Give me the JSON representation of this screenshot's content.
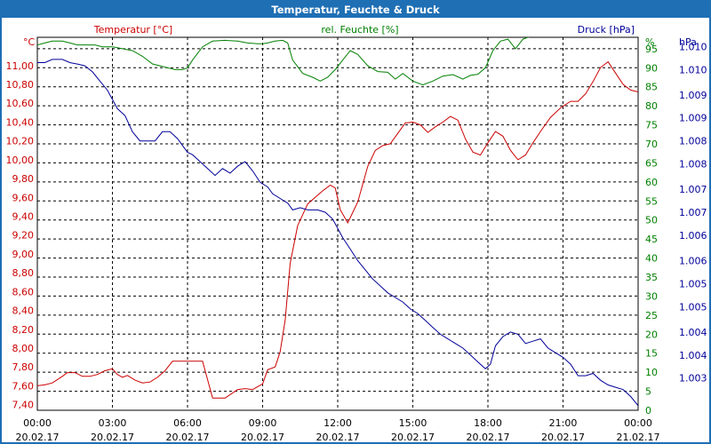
{
  "window": {
    "title": "Temperatur, Feuchte & Druck"
  },
  "colors": {
    "temperature": "#cc0000",
    "humidity": "#008000",
    "pressure": "#000099",
    "title_bar": "#1f6fb4",
    "grid": "#000000"
  },
  "chart_data": {
    "type": "line",
    "title": "Temperatur, Feuchte & Druck",
    "grid": true,
    "x_range": [
      "20.02.17 00:00",
      "21.02.17 00:00"
    ],
    "x_ticks": [
      {
        "time": "00:00",
        "date": "20.02.17",
        "h": 0
      },
      {
        "time": "03:00",
        "date": "20.02.17",
        "h": 3
      },
      {
        "time": "06:00",
        "date": "20.02.17",
        "h": 6
      },
      {
        "time": "09:00",
        "date": "20.02.17",
        "h": 9
      },
      {
        "time": "12:00",
        "date": "20.02.17",
        "h": 12
      },
      {
        "time": "15:00",
        "date": "20.02.17",
        "h": 15
      },
      {
        "time": "18:00",
        "date": "20.02.17",
        "h": 18
      },
      {
        "time": "21:00",
        "date": "20.02.17",
        "h": 21
      },
      {
        "time": "00:00",
        "date": "21.02.17",
        "h": 24
      }
    ],
    "axes": {
      "temperature": {
        "label": "Temperatur [°C]",
        "unit": "°C",
        "ylim": [
          7.34,
          11.3
        ],
        "ticks": [
          "11,00",
          "10,80",
          "10,60",
          "10,40",
          "10,20",
          "10,00",
          "9,80",
          "9,60",
          "9,40",
          "9,20",
          "9,00",
          "8,80",
          "8,60",
          "8,40",
          "8,20",
          "8,00",
          "7,80",
          "7,60",
          "7,40"
        ],
        "tick_values": [
          11.0,
          10.8,
          10.6,
          10.4,
          10.2,
          10.0,
          9.8,
          9.6,
          9.4,
          9.2,
          9.0,
          8.8,
          8.6,
          8.4,
          8.2,
          8.0,
          7.8,
          7.6,
          7.4
        ]
      },
      "humidity": {
        "label": "rel. Feuchte [%]",
        "unit": "%",
        "ylim": [
          0,
          98
        ],
        "ticks": [
          "95",
          "90",
          "85",
          "80",
          "75",
          "70",
          "65",
          "60",
          "55",
          "50",
          "45",
          "40",
          "35",
          "30",
          "25",
          "20",
          "15",
          "10",
          "5",
          "0"
        ],
        "tick_values": [
          95,
          90,
          85,
          80,
          75,
          70,
          65,
          60,
          55,
          50,
          45,
          40,
          35,
          30,
          25,
          20,
          15,
          10,
          5,
          0
        ]
      },
      "pressure": {
        "label": "Druck [hPa]",
        "unit": "hPa",
        "ylim": [
          1002.5,
          1010.6
        ],
        "ticks": [
          "1.010",
          "1.010",
          "1.009",
          "1.009",
          "1.008",
          "1.008",
          "1.007",
          "1.007",
          "1.006",
          "1.006",
          "1.005",
          "1.005",
          "1.004",
          "1.004",
          "1.003"
        ],
        "tick_positions": [
          1010.4,
          1009.9,
          1009.35,
          1008.85,
          1008.35,
          1007.85,
          1007.3,
          1006.8,
          1006.3,
          1005.75,
          1005.25,
          1004.75,
          1004.2,
          1003.7,
          1003.2
        ]
      }
    },
    "series": [
      {
        "name": "Temperatur [°C]",
        "axis": "temperature",
        "x": [
          0,
          0.3,
          0.6,
          1.0,
          1.2,
          1.5,
          1.8,
          2.1,
          2.4,
          2.7,
          3.0,
          3.2,
          3.4,
          3.6,
          3.9,
          4.2,
          4.5,
          4.8,
          5.1,
          5.4,
          5.7,
          6.0,
          6.3,
          6.6,
          7.0,
          7.5,
          8.0,
          8.3,
          8.6,
          9.0,
          9.2,
          9.5,
          9.7,
          9.9,
          10.1,
          10.4,
          10.8,
          11.1,
          11.4,
          11.7,
          11.9,
          12.1,
          12.4,
          12.8,
          13.2,
          13.5,
          13.8,
          14.1,
          14.4,
          14.7,
          15.0,
          15.3,
          15.6,
          15.9,
          16.2,
          16.5,
          16.8,
          17.1,
          17.4,
          17.7,
          18.0,
          18.3,
          18.6,
          18.9,
          19.2,
          19.5,
          19.8,
          20.1,
          20.5,
          20.9,
          21.3,
          21.6,
          21.9,
          22.2,
          22.5,
          22.8,
          23.1,
          23.4,
          23.7,
          24.0
        ],
        "values": [
          7.6,
          7.61,
          7.63,
          7.7,
          7.74,
          7.74,
          7.7,
          7.7,
          7.72,
          7.76,
          7.78,
          7.72,
          7.69,
          7.71,
          7.66,
          7.63,
          7.64,
          7.69,
          7.76,
          7.86,
          7.86,
          7.86,
          7.86,
          7.86,
          7.47,
          7.47,
          7.56,
          7.57,
          7.56,
          7.62,
          7.77,
          7.8,
          7.96,
          8.3,
          8.9,
          9.3,
          9.53,
          9.6,
          9.67,
          9.73,
          9.7,
          9.47,
          9.33,
          9.55,
          9.93,
          10.1,
          10.15,
          10.17,
          10.28,
          10.39,
          10.4,
          10.37,
          10.29,
          10.35,
          10.4,
          10.46,
          10.42,
          10.22,
          10.08,
          10.05,
          10.18,
          10.3,
          10.25,
          10.1,
          10.0,
          10.05,
          10.18,
          10.3,
          10.45,
          10.55,
          10.62,
          10.62,
          10.7,
          10.83,
          10.98,
          11.04,
          10.92,
          10.8,
          10.74,
          10.72
        ]
      },
      {
        "name": "rel. Feuchte [%]",
        "axis": "humidity",
        "x": [
          0,
          0.3,
          0.6,
          1.0,
          1.3,
          1.6,
          2.0,
          2.3,
          2.6,
          3.0,
          3.4,
          3.8,
          4.2,
          4.6,
          4.9,
          5.2,
          5.5,
          5.8,
          6.0,
          6.2,
          6.6,
          7.0,
          7.5,
          8.0,
          8.4,
          8.8,
          9.0,
          9.2,
          9.5,
          9.8,
          10.0,
          10.2,
          10.6,
          11.0,
          11.3,
          11.6,
          11.9,
          12.2,
          12.5,
          12.8,
          13.2,
          13.6,
          14.0,
          14.3,
          14.6,
          15.0,
          15.4,
          15.8,
          16.2,
          16.6,
          17.0,
          17.3,
          17.6,
          17.9,
          18.2,
          18.5,
          18.8,
          19.1,
          19.4,
          20.0,
          21.0,
          22.0,
          23.0,
          24.0
        ],
        "values": [
          96,
          96.5,
          97,
          97,
          96.5,
          96,
          96,
          96,
          95.5,
          95.5,
          95,
          94.5,
          93,
          91,
          90.5,
          90,
          89.5,
          89.5,
          90,
          92,
          95.5,
          97,
          97.2,
          97,
          96.5,
          96.3,
          96.3,
          96.5,
          97,
          97.2,
          96.5,
          92,
          88.5,
          87.5,
          86.5,
          87.5,
          89.5,
          92,
          94.5,
          93.5,
          90.5,
          89,
          88.8,
          87,
          88.5,
          86.5,
          85.5,
          86.5,
          87.8,
          88.2,
          87,
          88,
          88.3,
          90,
          94.5,
          97,
          97.5,
          95,
          97.5,
          99,
          99,
          99,
          99,
          99
        ]
      },
      {
        "name": "Druck [hPa]",
        "axis": "pressure",
        "x": [
          0,
          0.3,
          0.6,
          1.0,
          1.3,
          1.6,
          1.9,
          2.2,
          2.5,
          2.8,
          3.0,
          3.2,
          3.5,
          3.8,
          4.1,
          4.4,
          4.7,
          5.0,
          5.3,
          5.6,
          6.0,
          6.2,
          6.5,
          6.8,
          7.1,
          7.4,
          7.7,
          8.0,
          8.3,
          8.6,
          8.9,
          9.2,
          9.4,
          9.7,
          10.0,
          10.2,
          10.5,
          10.8,
          11.2,
          11.5,
          11.8,
          12.0,
          12.2,
          12.5,
          12.8,
          13.1,
          13.4,
          13.7,
          14.0,
          14.3,
          14.6,
          14.9,
          15.2,
          15.5,
          15.8,
          16.1,
          16.4,
          16.7,
          17.0,
          17.3,
          17.6,
          17.9,
          18.1,
          18.3,
          18.6,
          18.9,
          19.2,
          19.5,
          19.8,
          20.1,
          20.4,
          20.7,
          21.0,
          21.3,
          21.6,
          21.9,
          22.2,
          22.5,
          22.8,
          23.1,
          23.4,
          23.7,
          24.0
        ],
        "values": [
          1010.05,
          1010.05,
          1010.12,
          1010.12,
          1010.05,
          1010.02,
          1009.98,
          1009.85,
          1009.65,
          1009.45,
          1009.25,
          1009.05,
          1008.9,
          1008.55,
          1008.35,
          1008.35,
          1008.35,
          1008.55,
          1008.55,
          1008.4,
          1008.1,
          1008.05,
          1007.9,
          1007.75,
          1007.6,
          1007.75,
          1007.65,
          1007.8,
          1007.9,
          1007.7,
          1007.45,
          1007.35,
          1007.2,
          1007.1,
          1007.0,
          1006.85,
          1006.9,
          1006.85,
          1006.85,
          1006.8,
          1006.65,
          1006.45,
          1006.25,
          1006.0,
          1005.75,
          1005.55,
          1005.35,
          1005.2,
          1005.05,
          1004.95,
          1004.85,
          1004.7,
          1004.6,
          1004.45,
          1004.3,
          1004.15,
          1004.05,
          1003.95,
          1003.85,
          1003.7,
          1003.55,
          1003.4,
          1003.5,
          1003.9,
          1004.1,
          1004.2,
          1004.15,
          1003.95,
          1004.0,
          1004.05,
          1003.85,
          1003.75,
          1003.65,
          1003.5,
          1003.25,
          1003.25,
          1003.3,
          1003.15,
          1003.05,
          1003.0,
          1002.95,
          1002.8,
          1002.6
        ]
      }
    ]
  }
}
